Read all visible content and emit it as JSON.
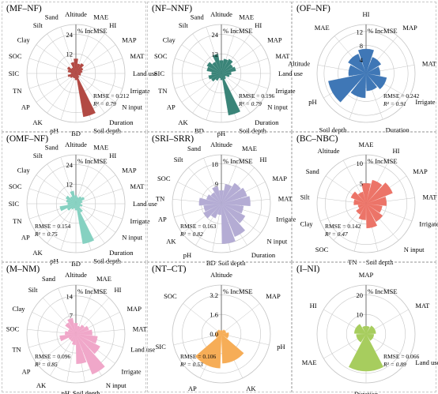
{
  "colors": {
    "grid": "#c4c4c4",
    "text": "#000000"
  },
  "chart_data": [
    {
      "type": "polar-bar",
      "title": "(MF–NF)",
      "color": "#b24a44",
      "unit_label": "% IncMSE",
      "rticks": [
        12,
        24
      ],
      "rmax": 30,
      "rmse_text": "RMSE = 0.212",
      "r2_text": "R² = 0.79",
      "stats_pos": "right",
      "variables": [
        "Altitude",
        "MAE",
        "HI",
        "MAP",
        "MAT",
        "Land use",
        "Irrigate",
        "N input",
        "Duration",
        "Soil depth",
        "BD",
        "pH",
        "AK",
        "AP",
        "TN",
        "SIC",
        "SOC",
        "Clay",
        "Silt",
        "Sand"
      ],
      "values": [
        9,
        6,
        7,
        5,
        4,
        3,
        3,
        2,
        3,
        27,
        4,
        3,
        3,
        4,
        5,
        3,
        5,
        6,
        4,
        7
      ]
    },
    {
      "type": "polar-bar",
      "title": "(NF–NNF)",
      "color": "#3a8478",
      "unit_label": "% IncMSE",
      "rticks": [
        12,
        24
      ],
      "rmax": 30,
      "rmse_text": "RMSE = 0.196",
      "r2_text": "R² = 0.79",
      "stats_pos": "right",
      "variables": [
        "Altitude",
        "MAE",
        "HI",
        "MAP",
        "MAT",
        "Land use",
        "Irrigate",
        "N input",
        "Duration",
        "Soil depth",
        "pH",
        "BD",
        "AK",
        "AP",
        "TN",
        "SIC",
        "SOC",
        "Clay",
        "Silt",
        "Sand"
      ],
      "values": [
        8,
        9,
        10,
        8,
        9,
        6,
        5,
        3,
        4,
        26,
        4,
        3,
        5,
        7,
        8,
        6,
        9,
        10,
        8,
        12
      ]
    },
    {
      "type": "polar-bar",
      "title": "(OF–NF)",
      "color": "#3f77b6",
      "unit_label": "% IncMSE",
      "rticks": [
        4,
        8,
        12
      ],
      "rmax": 14,
      "rmse_text": "RMSE = 0.242",
      "r2_text": "R² = 0.91",
      "stats_pos": "right",
      "variables": [
        "HI",
        "MAP",
        "MAT",
        "Irrigate",
        "Duration",
        "Soil depth",
        "pH",
        "Altitude",
        "MAE"
      ],
      "values": [
        7,
        5,
        4,
        6,
        5,
        7,
        11,
        5,
        6
      ]
    },
    {
      "type": "polar-bar",
      "title": "(OMF–NF)",
      "color": "#86d1c1",
      "unit_label": "% IncMSE",
      "rticks": [
        12,
        24
      ],
      "rmax": 30,
      "rmse_text": "RMSE = 0.154",
      "r2_text": "R² = 0.75",
      "stats_pos": "left",
      "variables": [
        "Altitude",
        "MAE",
        "HI",
        "MAP",
        "MAT",
        "Land use",
        "Irrigate",
        "N input",
        "Duration",
        "Soil depth",
        "BD",
        "pH",
        "AK",
        "AP",
        "TN",
        "SIC",
        "SOC",
        "Clay",
        "Silt",
        "Sand"
      ],
      "values": [
        5,
        4,
        5,
        6,
        4,
        3,
        4,
        3,
        6,
        25,
        4,
        3,
        4,
        6,
        10,
        5,
        6,
        7,
        5,
        8
      ]
    },
    {
      "type": "polar-bar",
      "title": "(SRI–SRR)",
      "color": "#b4acd4",
      "unit_label": "% IncMSE",
      "rticks": [
        9,
        18
      ],
      "rmax": 22,
      "rmse_text": "RMSE = 0.163",
      "r2_text": "R² = 0.82",
      "stats_pos": "left",
      "variables": [
        "Altitude",
        "MAE",
        "HI",
        "MAP",
        "MAT",
        "Irrigate",
        "N input",
        "Duration",
        "Soil depth",
        "BD",
        "pH",
        "AK",
        "AP",
        "TN",
        "SOC",
        "Silt",
        "Sand"
      ],
      "values": [
        6,
        9,
        11,
        12,
        13,
        10,
        12,
        16,
        18,
        5,
        7,
        9,
        8,
        10,
        7,
        6,
        8
      ]
    },
    {
      "type": "polar-bar",
      "title": "(BC–NBC)",
      "color": "#ec7468",
      "unit_label": "% IncMSE",
      "rticks": [
        5,
        10
      ],
      "rmax": 12,
      "rmse_text": "RMSE = 0.142",
      "r2_text": "R² = 0.47",
      "stats_pos": "left",
      "variables": [
        "MAE",
        "HI",
        "MAP",
        "MAT",
        "Irrigate",
        "N input",
        "Soil depth",
        "TN",
        "SOC",
        "Clay",
        "Silt",
        "Sand",
        "Altitude"
      ],
      "values": [
        5,
        6,
        7,
        5,
        4,
        5,
        6,
        4,
        3,
        2,
        3,
        4,
        3
      ]
    },
    {
      "type": "polar-bar",
      "title": "(M–NM)",
      "color": "#f0a7c9",
      "unit_label": "% IncMSE",
      "rticks": [
        7,
        14
      ],
      "rmax": 18,
      "rmse_text": "RMSE = 0.096",
      "r2_text": "R² = 0.85",
      "stats_pos": "left",
      "variables": [
        "Altitude",
        "MAE",
        "HI",
        "MAP",
        "MAT",
        "Land use",
        "Irrigate",
        "N input",
        "Soil depth",
        "pH",
        "AK",
        "AP",
        "TN",
        "SOC",
        "Clay",
        "Silt",
        "Sand"
      ],
      "values": [
        4,
        3,
        4,
        5,
        6,
        8,
        10,
        16,
        11,
        4,
        3,
        3,
        6,
        4,
        3,
        5,
        6
      ]
    },
    {
      "type": "polar-bar",
      "title": "(NT–CT)",
      "color": "#f6ad57",
      "unit_label": "% IncMSE",
      "rticks": [
        1.6,
        3.2
      ],
      "rmax": 4,
      "rmse_text": "RMSE = 0.106",
      "r2_text": "R² = 0.53",
      "stats_pos": "left",
      "zero_label": "0.0",
      "variables": [
        "Altitude",
        "MAP",
        "pH",
        "AK",
        "AP",
        "SIC",
        "SOC"
      ],
      "values": [
        0.3,
        0.4,
        0.6,
        2.4,
        2.8,
        0.5,
        0.4
      ]
    },
    {
      "type": "polar-bar",
      "title": "(I–NI)",
      "color": "#a7cd5e",
      "unit_label": "% IncMSE",
      "rticks": [
        10,
        20
      ],
      "rmax": 25,
      "rmse_text": "RMSE = 0.066",
      "r2_text": "R² = 0.89",
      "stats_pos": "right",
      "variables": [
        "MAP",
        "MAT",
        "Land use",
        "Duration",
        "MAE",
        "HI"
      ],
      "values": [
        4,
        5,
        4,
        19,
        5,
        6
      ]
    }
  ]
}
